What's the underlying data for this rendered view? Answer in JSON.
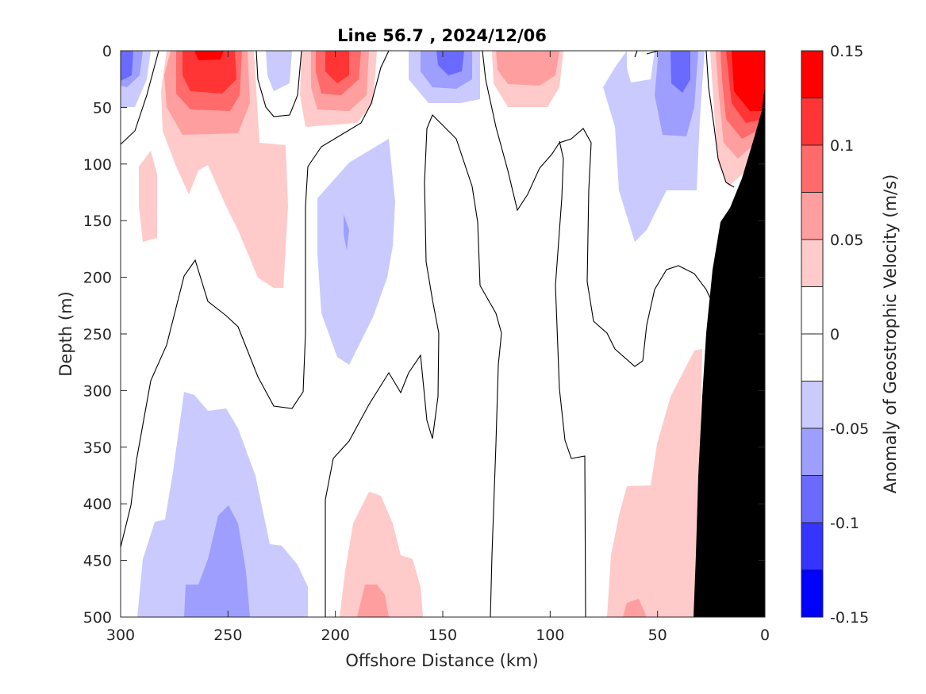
{
  "chart_data": {
    "type": "heatmap",
    "subtype": "filled-contour",
    "title": "Line 56.7 , 2024/12/06",
    "xlabel": "Offshore Distance (km)",
    "ylabel": "Depth (m)",
    "xlim": [
      300,
      0
    ],
    "ylim": [
      500,
      0
    ],
    "x_reversed": true,
    "y_reversed": true,
    "xticks": [
      "300",
      "250",
      "200",
      "150",
      "100",
      "50",
      "0"
    ],
    "yticks": [
      "0",
      "50",
      "100",
      "150",
      "200",
      "250",
      "300",
      "350",
      "400",
      "450",
      "500"
    ],
    "colorbar": {
      "label": "Anomaly of Geostrophic Velocity (m/s)",
      "range": [
        -0.15,
        0.15
      ],
      "tick_labels": [
        "0.15",
        "0.1",
        "0.05",
        "0",
        "-0.05",
        "-0.1",
        "-0.15"
      ],
      "levels": [
        0.15,
        0.125,
        0.1,
        0.075,
        0.05,
        0.025,
        0,
        -0.025,
        -0.05,
        -0.075,
        -0.1,
        -0.125,
        -0.15
      ],
      "colors": [
        "#ff0000",
        "#ff3535",
        "#ff6a6a",
        "#ff9e9e",
        "#ffcaca",
        "#ffffff",
        "#ffffff",
        "#cacaff",
        "#9e9eff",
        "#6a6aff",
        "#3535ff",
        "#0000ff"
      ]
    },
    "bathymetry_color": "#000000",
    "features": [
      {
        "type": "positive",
        "x": [
          290,
          230
        ],
        "depth": [
          0,
          210
        ],
        "max": 0.125
      },
      {
        "type": "negative",
        "x": [
          215,
          225
        ],
        "depth": [
          0,
          35
        ],
        "min": -0.05
      },
      {
        "type": "positive",
        "x": [
          210,
          180
        ],
        "depth": [
          0,
          65
        ],
        "max": 0.125
      },
      {
        "type": "negative",
        "x": [
          165,
          135
        ],
        "depth": [
          0,
          45
        ],
        "min": -0.1
      },
      {
        "type": "positive",
        "x": [
          130,
          95
        ],
        "depth": [
          0,
          50
        ],
        "max": 0.075
      },
      {
        "type": "negative",
        "x": [
          75,
          28
        ],
        "depth": [
          0,
          170
        ],
        "min": -0.1
      },
      {
        "type": "positive",
        "x": [
          26,
          0
        ],
        "depth": [
          0,
          120
        ],
        "max": 0.15
      },
      {
        "type": "negative",
        "x": [
          200,
          175
        ],
        "depth": [
          80,
          275
        ],
        "min": -0.05
      },
      {
        "type": "negative",
        "x": [
          290,
          215
        ],
        "depth": [
          300,
          500
        ],
        "min": -0.075
      },
      {
        "type": "positive",
        "x": [
          200,
          160
        ],
        "depth": [
          390,
          500
        ],
        "max": 0.075
      },
      {
        "type": "positive",
        "x": [
          75,
          35
        ],
        "depth": [
          255,
          500
        ],
        "max": 0.075
      }
    ]
  }
}
